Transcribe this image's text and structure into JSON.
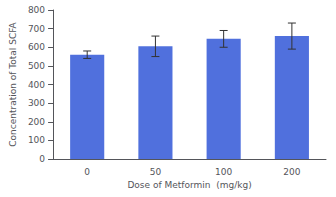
{
  "chart_data": {
    "type": "bar",
    "categories": [
      "0",
      "50",
      "100",
      "200"
    ],
    "values": [
      560,
      605,
      645,
      660
    ],
    "errors": [
      20,
      55,
      45,
      70
    ],
    "xlabel": "Dose of Metformin  (mg/kg)",
    "ylabel": "Concentration of Total SCFA",
    "ylim": [
      0,
      800
    ],
    "yticks": [
      0,
      100,
      200,
      300,
      400,
      500,
      600,
      700,
      800
    ],
    "grid": false
  }
}
